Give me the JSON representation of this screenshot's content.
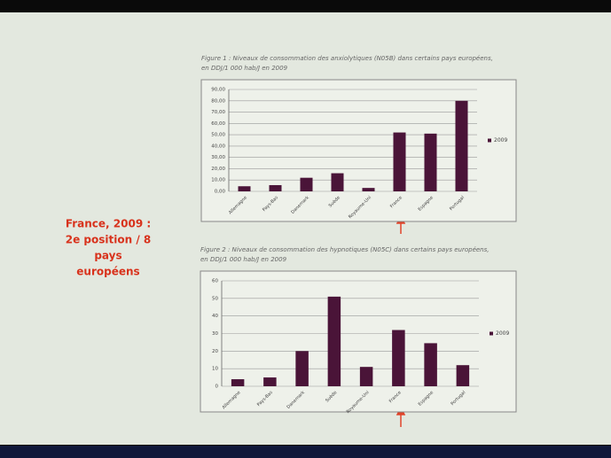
{
  "chart_data": [
    {
      "type": "bar",
      "title": "Figure 1 : Niveaux de consommation des anxiolytiques (N05B) dans certains pays européens,",
      "subtitle": "en DDJ/1 000 hab/J en 2009",
      "categories": [
        "Allemagne",
        "Pays-Bas",
        "Danemark",
        "Suède",
        "Royaume-Uni",
        "France",
        "Espagne",
        "Portugal"
      ],
      "series": [
        {
          "name": "2009",
          "color": "#4a1438",
          "values": [
            4.5,
            5.5,
            12,
            16,
            3,
            52,
            51,
            80
          ]
        }
      ],
      "ylim": [
        0,
        90
      ],
      "yticks": [
        {
          "value": 0,
          "label": "0,00"
        },
        {
          "value": 10,
          "label": "10,00"
        },
        {
          "value": 20,
          "label": "20,00"
        },
        {
          "value": 30,
          "label": "30,00"
        },
        {
          "value": 40,
          "label": "40,00"
        },
        {
          "value": 50,
          "label": "50,00"
        },
        {
          "value": 60,
          "label": "60,00"
        },
        {
          "value": 70,
          "label": "70,00"
        },
        {
          "value": 80,
          "label": "80,00"
        },
        {
          "value": 90,
          "label": "90,00"
        }
      ],
      "grid": true,
      "legend": "right"
    },
    {
      "type": "bar",
      "title": "Figure 2 : Niveaux de consommation des hypnotiques (N05C) dans certains pays européens,",
      "subtitle": "en DDJ/1 000 hab/J en 2009",
      "categories": [
        "Allemagne",
        "Pays-Bas",
        "Danemark",
        "Suède",
        "Royaume-Uni",
        "France",
        "Espagne",
        "Portugal"
      ],
      "series": [
        {
          "name": "2009",
          "color": "#4a1438",
          "values": [
            4,
            5,
            20,
            51,
            11,
            32,
            24.5,
            12
          ]
        }
      ],
      "ylim": [
        0,
        60
      ],
      "yticks": [
        0,
        10,
        20,
        30,
        40,
        50,
        60
      ],
      "grid": true,
      "legend": "right"
    }
  ],
  "slide_text": [
    "France, 2009 :",
    "2e position / 8",
    "pays",
    "européens"
  ]
}
